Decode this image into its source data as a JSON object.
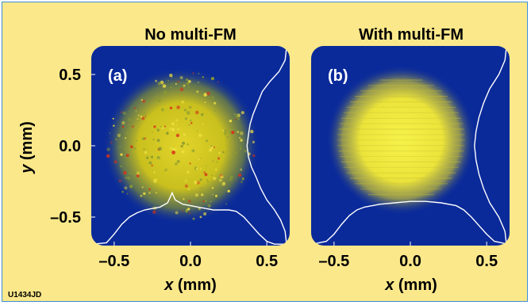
{
  "figure_id": "U1434JD",
  "colors": {
    "background": "#fbe88a",
    "border": "#3a8fd8",
    "panel_bg": "#0a2a9a",
    "profile_line": "#ffffff",
    "spot_a": "#d2c81e",
    "spot_b": "#f2ee40",
    "hotspot": "#d83018"
  },
  "chart_data": [
    {
      "type": "heatmap",
      "panel_label": "(a)",
      "title": "No multi-FM",
      "xlabel": "x",
      "xlabel_unit": " (mm)",
      "ylabel": "y",
      "ylabel_unit": " (mm)",
      "xlim": [
        -0.65,
        0.65
      ],
      "ylim": [
        -0.7,
        0.7
      ],
      "x_ticks": [
        "–0.5",
        "0.0",
        "0.5"
      ],
      "x_tick_values": [
        -0.5,
        0.0,
        0.5
      ],
      "y_ticks": [
        "0.5",
        "0.0",
        "–0.5"
      ],
      "y_tick_values": [
        0.5,
        0.0,
        -0.5
      ],
      "beam": {
        "center": [
          -0.06,
          0.0
        ],
        "radius_mm": 0.46,
        "texture": "speckled"
      },
      "horizontal_profile_x": [
        -0.64,
        -0.55,
        -0.5,
        -0.45,
        -0.4,
        -0.35,
        -0.3,
        -0.25,
        -0.2,
        -0.15,
        -0.12,
        -0.1,
        -0.05,
        0.0,
        0.05,
        0.1,
        0.15,
        0.2,
        0.25,
        0.3,
        0.35,
        0.4,
        0.45,
        0.5,
        0.55,
        0.64
      ],
      "horizontal_profile_y": [
        -0.69,
        -0.68,
        -0.62,
        -0.55,
        -0.5,
        -0.47,
        -0.45,
        -0.44,
        -0.43,
        -0.4,
        -0.33,
        -0.38,
        -0.41,
        -0.42,
        -0.43,
        -0.44,
        -0.45,
        -0.45,
        -0.45,
        -0.46,
        -0.5,
        -0.56,
        -0.62,
        -0.67,
        -0.69,
        -0.69
      ],
      "vertical_profile_y": [
        0.7,
        0.6,
        0.52,
        0.45,
        0.38,
        0.3,
        0.22,
        0.15,
        0.08,
        0.0,
        -0.08,
        -0.15,
        -0.22,
        -0.3,
        -0.38,
        -0.45,
        -0.52,
        -0.6,
        -0.7
      ],
      "vertical_profile_x": [
        0.63,
        0.62,
        0.58,
        0.52,
        0.47,
        0.44,
        0.41,
        0.39,
        0.38,
        0.37,
        0.38,
        0.4,
        0.43,
        0.46,
        0.5,
        0.55,
        0.59,
        0.62,
        0.63
      ]
    },
    {
      "type": "heatmap",
      "panel_label": "(b)",
      "title": "With multi-FM",
      "xlabel": "x",
      "xlabel_unit": " (mm)",
      "xlim": [
        -0.65,
        0.65
      ],
      "ylim": [
        -0.7,
        0.7
      ],
      "x_ticks": [
        "–0.5",
        "0.0",
        "0.5"
      ],
      "x_tick_values": [
        -0.5,
        0.0,
        0.5
      ],
      "beam": {
        "center": [
          -0.06,
          0.04
        ],
        "radius_mm": 0.44,
        "texture": "smooth"
      },
      "horizontal_profile_x": [
        -0.64,
        -0.55,
        -0.5,
        -0.45,
        -0.4,
        -0.35,
        -0.3,
        -0.2,
        -0.1,
        0.0,
        0.1,
        0.2,
        0.3,
        0.35,
        0.4,
        0.45,
        0.5,
        0.55,
        0.64
      ],
      "horizontal_profile_y": [
        -0.69,
        -0.67,
        -0.62,
        -0.55,
        -0.49,
        -0.45,
        -0.43,
        -0.41,
        -0.4,
        -0.39,
        -0.39,
        -0.4,
        -0.42,
        -0.45,
        -0.5,
        -0.56,
        -0.62,
        -0.67,
        -0.69
      ],
      "vertical_profile_y": [
        0.7,
        0.6,
        0.5,
        0.4,
        0.3,
        0.2,
        0.1,
        0.0,
        -0.1,
        -0.2,
        -0.3,
        -0.4,
        -0.5,
        -0.6,
        -0.7
      ],
      "vertical_profile_x": [
        0.63,
        0.62,
        0.58,
        0.52,
        0.48,
        0.45,
        0.43,
        0.42,
        0.43,
        0.45,
        0.48,
        0.52,
        0.58,
        0.62,
        0.63
      ]
    }
  ]
}
